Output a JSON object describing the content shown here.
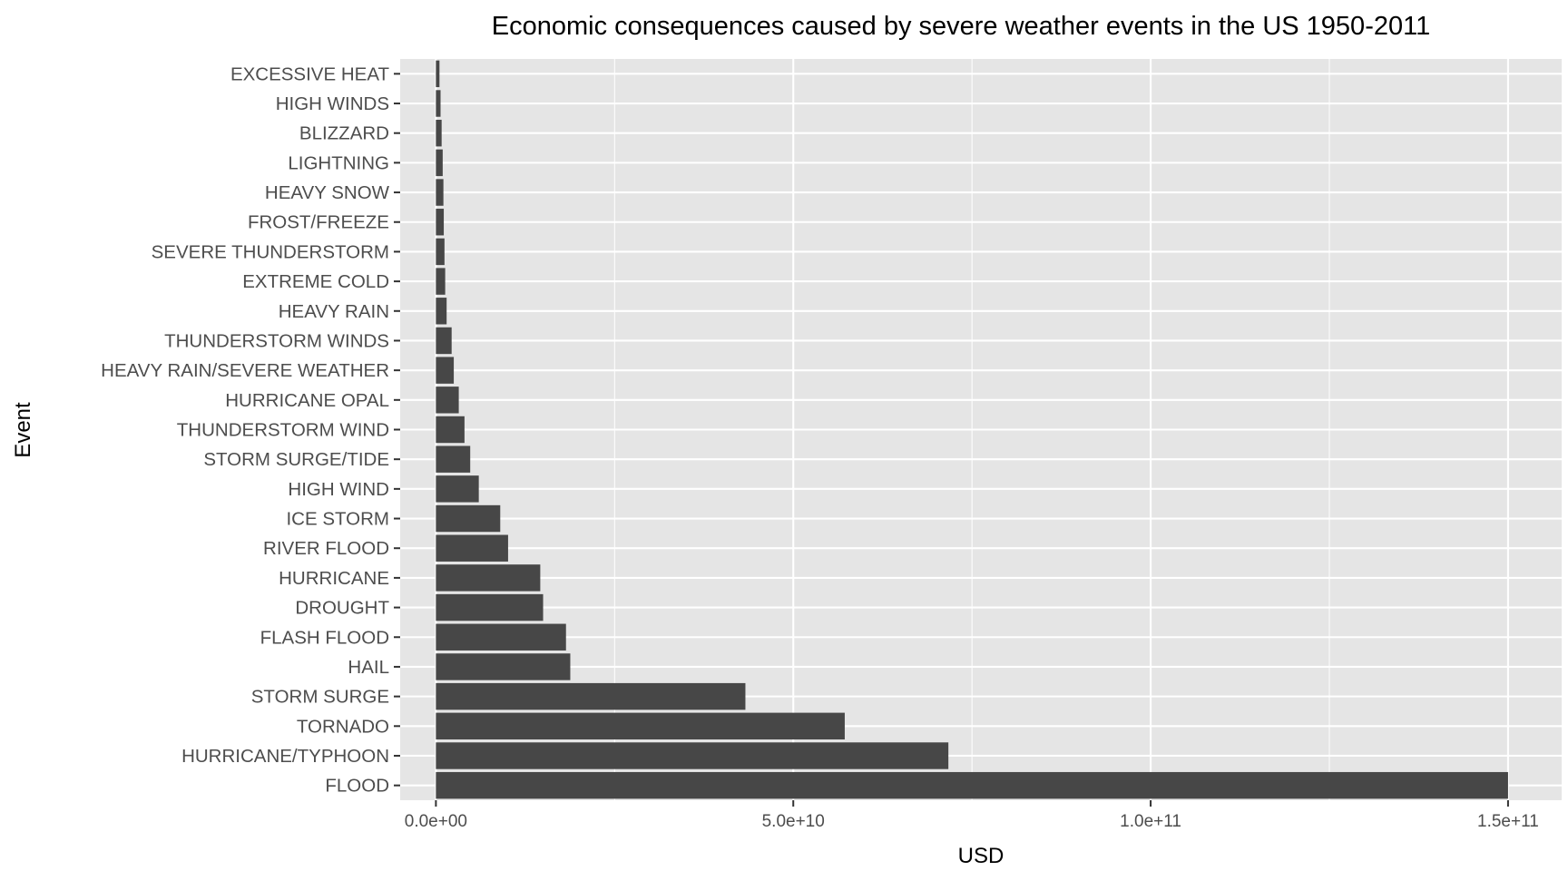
{
  "chart_data": {
    "type": "bar",
    "orientation": "horizontal",
    "title": "Economic consequences caused by severe weather events in the US 1950-2011",
    "xlabel": "USD",
    "ylabel": "Event",
    "xlim": [
      -5000000000.0,
      157500000000.0
    ],
    "x_ticks": [
      0,
      50000000000.0,
      100000000000.0,
      150000000000.0
    ],
    "x_tick_labels": [
      "0.0e+00",
      "5.0e+10",
      "1.0e+11",
      "1.5e+11"
    ],
    "grid": true,
    "legend": "none",
    "categories": [
      "EXCESSIVE HEAT",
      "HIGH WINDS",
      "BLIZZARD",
      "LIGHTNING",
      "HEAVY SNOW",
      "FROST/FREEZE",
      "SEVERE THUNDERSTORM",
      "EXTREME COLD",
      "HEAVY RAIN",
      "THUNDERSTORM WINDS",
      "HEAVY RAIN/SEVERE WEATHER",
      "HURRICANE OPAL",
      "THUNDERSTORM WIND",
      "STORM SURGE/TIDE",
      "HIGH WIND",
      "ICE STORM",
      "RIVER FLOOD",
      "HURRICANE",
      "DROUGHT",
      "FLASH FLOOD",
      "HAIL",
      "STORM SURGE",
      "TORNADO",
      "HURRICANE/TYPHOON",
      "FLOOD"
    ],
    "values": [
      500000000.0,
      650000000.0,
      800000000.0,
      950000000.0,
      1050000000.0,
      1100000000.0,
      1200000000.0,
      1300000000.0,
      1500000000.0,
      2200000000.0,
      2500000000.0,
      3200000000.0,
      4000000000.0,
      4800000000.0,
      6000000000.0,
      9000000000.0,
      10100000000.0,
      14600000000.0,
      15000000000.0,
      18200000000.0,
      18800000000.0,
      43300000000.0,
      57200000000.0,
      71700000000.0,
      150000000000.0
    ],
    "colors": {
      "bar": "#474747",
      "panel": "#e5e5e5",
      "grid": "#ffffff"
    }
  }
}
